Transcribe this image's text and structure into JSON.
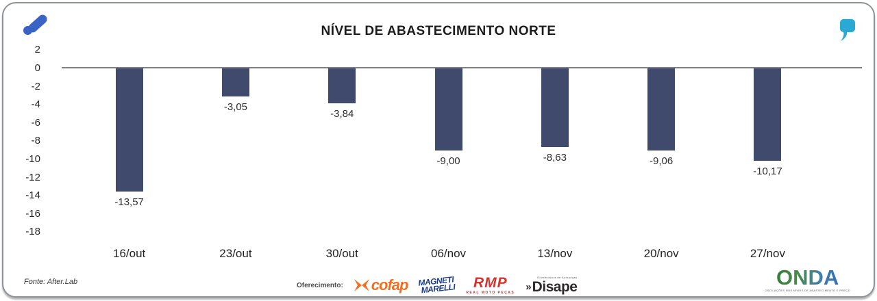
{
  "header": {
    "title": "NÍVEL DE ABASTECIMENTO NORTE"
  },
  "icons": {
    "brand_left": "ads-logo",
    "brand_right": "quote-mark"
  },
  "colors": {
    "bar": "#3f4a6d",
    "axis_line": "#7f7f7f",
    "quote_icon": "#2aa9d2",
    "ads_icon": "#3b63c6",
    "cofap": "#f26f21",
    "magneti_marelli": "#1e3c8c",
    "rmp": "#d6332e",
    "disape": "#2e2a2b"
  },
  "chart_data": {
    "type": "bar",
    "title": "NÍVEL DE ABASTECIMENTO NORTE",
    "categories": [
      "16/out",
      "23/out",
      "30/out",
      "06/nov",
      "13/nov",
      "20/nov",
      "27/nov"
    ],
    "values": [
      -13.57,
      -3.05,
      -3.84,
      -9.0,
      -8.63,
      -9.06,
      -10.17
    ],
    "value_labels": [
      "-13,57",
      "-3,05",
      "-3,84",
      "-9,00",
      "-8,63",
      "-9,06",
      "-10,17"
    ],
    "xlabel": "",
    "ylabel": "",
    "ylim": [
      -18,
      2
    ],
    "yticks": [
      2,
      0,
      -2,
      -4,
      -6,
      -8,
      -10,
      -12,
      -14,
      -16,
      -18
    ],
    "grid": false,
    "legend_position": "none",
    "bar_color": "#3f4a6d"
  },
  "footer": {
    "source": "Fonte: After.Lab",
    "sponsors": {
      "label": "Oferecimento:",
      "cofap": {
        "name": "cofap"
      },
      "magneti": {
        "line1": "MAGNETI",
        "line2": "MARELLI"
      },
      "rmp": {
        "name": "RMP",
        "subtext": "REAL MOTO PEÇAS"
      },
      "disape": {
        "prefix": "»",
        "name": "Disape",
        "subtext": "Distribuidora de Autopeças"
      }
    },
    "onda": {
      "name": "ONDA",
      "tagline": "OSCILAÇÕES NOS NÍVEIS DE ABASTECIMENTO E PREÇO"
    }
  }
}
